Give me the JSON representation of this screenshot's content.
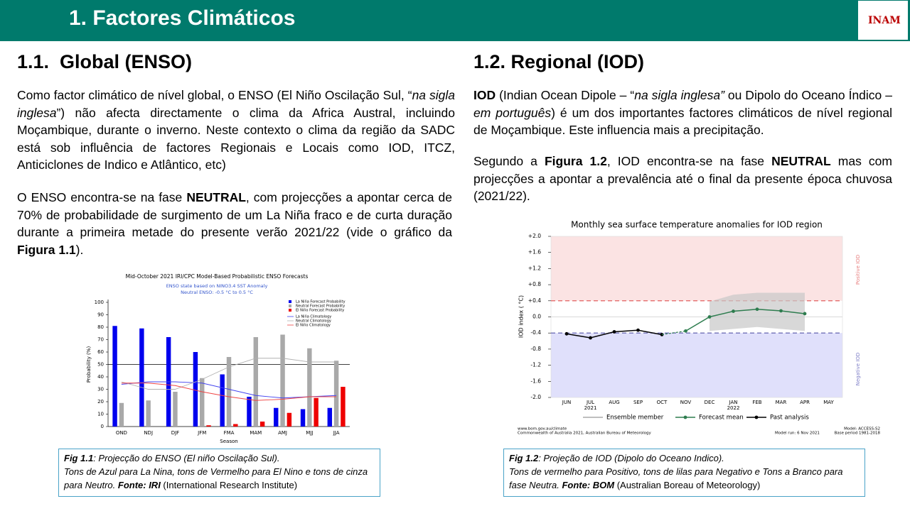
{
  "header": {
    "title": "1. Factores Climáticos",
    "logo": "INAM"
  },
  "sections": [
    {
      "heading": "1.1.  Global (ENSO)",
      "paragraphs": [
        [
          "Como factor climático de nível global, o ENSO (El Niño Oscilação Sul, “",
          "na sigla inglesa",
          "”) não afecta directamente o clima da Africa Austral, incluindo Moçambique, durante o inverno. Neste contexto o clima da região da SADC está sob influência de factores Regionais e Locais como IOD, ITCZ, Anticiclones de Indico e Atlântico, etc)"
        ],
        [
          "O ENSO encontra-se na fase ",
          "NEUTRAL",
          ", com projecções a apontar cerca de 70% de probabilidade de surgimento de um La Niña fraco e de curta duração durante a primeira metade do presente verão 2021/22 (vide o gráfico da ",
          "Figura 1.1",
          ")."
        ]
      ],
      "caption": [
        [
          "Fig 1.1",
          ": Projecção do ENSO (El niño Oscilação Sul)."
        ],
        [
          "Tons de Azul para La Nina, tons de Vermelho para El Nino e tons de cinza para Neutro. ",
          "Fonte: IRI",
          " (International Research Institute)"
        ]
      ]
    },
    {
      "heading": "1.2. Regional (IOD)",
      "paragraphs": [
        [
          "IOD",
          " (Indian Ocean Dipole – “",
          "na sigla inglesa”",
          " ou Dipolo do Oceano Índico – ",
          "em português",
          ") é um dos importantes factores climáticos de nível regional de Moçambique. Este influencia mais a precipitação."
        ],
        [
          "Segundo a ",
          "Figura 1.2",
          ", IOD encontra-se na fase ",
          "NEUTRAL",
          " mas com projecções a apontar a prevalência até o final da presente época chuvosa (2021/22)."
        ]
      ],
      "caption": [
        [
          "Fig 1.2",
          ": Projeção de IOD (Dipolo do Oceano Indico)."
        ],
        [
          "Tons de vermelho para Positivo, tons de lilas para Negativo e Tons a Branco para fase Neutra. ",
          "Fonte: BOM",
          " (Australian Boreau of Meteorology)"
        ]
      ]
    }
  ],
  "chart_data": [
    {
      "type": "bar",
      "title": "Mid-October 2021 IRI/CPC Model-Based Probabilistic ENSO Forecasts",
      "subtitle": [
        "ENSO state based on NINO3.4 SST Anomaly",
        "Neutral ENSO: -0.5 °C to 0.5 °C"
      ],
      "x_label": "Season",
      "y_label": "Probability (%)",
      "categories": [
        "OND",
        "NDJ",
        "DJF",
        "JFM",
        "FMA",
        "MAM",
        "AMJ",
        "MJJ",
        "JJA"
      ],
      "series": [
        {
          "name": "La Niña Forecast Probability",
          "type": "bar",
          "color": "#0000ee",
          "values": [
            81,
            79,
            72,
            60,
            42,
            24,
            15,
            14,
            15
          ]
        },
        {
          "name": "Neutral Forecast Probability",
          "type": "bar",
          "color": "#a9a9a9",
          "values": [
            19,
            21,
            28,
            39,
            56,
            72,
            74,
            63,
            53
          ]
        },
        {
          "name": "El Niño Forecast Probability",
          "type": "bar",
          "color": "#ee0000",
          "values": [
            0,
            0,
            0,
            1,
            2,
            4,
            11,
            23,
            32
          ]
        },
        {
          "name": "La Niña Climatology",
          "type": "line",
          "color": "#4444ee",
          "values": [
            34,
            36,
            36,
            35,
            30,
            25,
            23,
            24,
            25
          ]
        },
        {
          "name": "Neutral Climatology",
          "type": "line",
          "color": "#b0b0b0",
          "values": [
            36,
            30,
            30,
            38,
            48,
            55,
            55,
            52,
            52
          ]
        },
        {
          "name": "El Niño Climatology",
          "type": "line",
          "color": "#ee4444",
          "values": [
            35,
            35,
            33,
            28,
            24,
            21,
            22,
            24,
            24
          ]
        }
      ],
      "ylim": [
        0,
        100
      ],
      "yticks": [
        0,
        10,
        20,
        30,
        40,
        50,
        60,
        70,
        80,
        90,
        100
      ],
      "hline": 50
    },
    {
      "type": "line",
      "title": "Monthly sea surface temperature anomalies for IOD region",
      "y_label": "IOD index ( °C)",
      "categories": [
        "JUN",
        "JUL",
        "AUG",
        "SEP",
        "OCT",
        "NOV",
        "DEC",
        "JAN",
        "FEB",
        "MAR",
        "APR",
        "MAY"
      ],
      "category_years": [
        null,
        "2021",
        null,
        null,
        null,
        null,
        null,
        "2022",
        null,
        null,
        null,
        null
      ],
      "series": [
        {
          "name": "Ensemble member",
          "type": "band",
          "color": "#c8c8c8",
          "values": [
            null,
            null,
            null,
            null,
            null,
            null,
            0.38,
            0.55,
            0.6,
            0.6,
            0.6,
            null
          ],
          "low": [
            null,
            null,
            null,
            null,
            null,
            null,
            -0.35,
            -0.3,
            -0.25,
            -0.3,
            -0.35,
            null
          ]
        },
        {
          "name": "Forecast mean",
          "type": "line",
          "color": "#2e7d4f",
          "values": [
            null,
            null,
            null,
            null,
            null,
            -0.35,
            0.0,
            0.14,
            0.19,
            0.15,
            0.08,
            null
          ]
        },
        {
          "name": "Past analysis",
          "type": "line",
          "color": "#000000",
          "values": [
            -0.42,
            -0.52,
            -0.37,
            -0.33,
            -0.44,
            null,
            null,
            null,
            null,
            null,
            null,
            null
          ]
        }
      ],
      "ylim": [
        -2.0,
        2.0
      ],
      "yticks": [
        {
          "value": 2.0,
          "label": "+2.0"
        },
        {
          "value": 1.6,
          "label": "+1.6"
        },
        {
          "value": 1.2,
          "label": "+1.2"
        },
        {
          "value": 0.8,
          "label": "+0.8"
        },
        {
          "value": 0.4,
          "label": "+0.4"
        },
        {
          "value": 0.0,
          "label": "0.0"
        },
        {
          "value": -0.4,
          "label": "-0.4"
        },
        {
          "value": -0.8,
          "label": "-0.8"
        },
        {
          "value": -1.2,
          "label": "-1.2"
        },
        {
          "value": -1.6,
          "label": "-1.6"
        },
        {
          "value": -2.0,
          "label": "-2.0"
        }
      ],
      "positive_threshold": 0.4,
      "negative_threshold": -0.4,
      "positive_label": "Positive IOD",
      "negative_label": "Negative IOD",
      "footer_left": [
        "www.bom.gov.au/climate",
        "Commonwealth of Australia 2021, Australian Bureau of Meteorology"
      ],
      "footer_right": [
        "Model: ACCESS-S2",
        "Model run: 6 Nov 2021",
        "Base period 1981-2018"
      ]
    }
  ]
}
